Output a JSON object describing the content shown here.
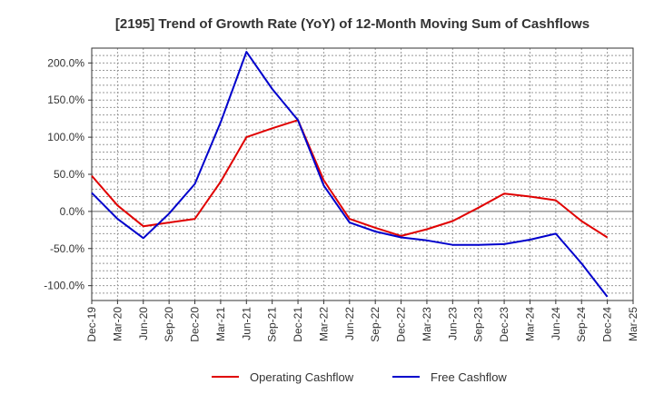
{
  "chart_data": {
    "type": "line",
    "title": "[2195]  Trend of Growth Rate (YoY) of 12-Month Moving Sum of Cashflows",
    "xlabel": "",
    "ylabel": "",
    "ylim": [
      -120,
      220
    ],
    "yticks": [
      200,
      150,
      100,
      50,
      0,
      -50,
      -100
    ],
    "ytick_labels": [
      "200.0%",
      "150.0%",
      "100.0%",
      "50.0%",
      "0.0%",
      "-50.0%",
      "-100.0%"
    ],
    "categories": [
      "Dec-19",
      "Mar-20",
      "Jun-20",
      "Sep-20",
      "Dec-20",
      "Mar-21",
      "Jun-21",
      "Sep-21",
      "Dec-21",
      "Mar-22",
      "Jun-22",
      "Sep-22",
      "Dec-22",
      "Mar-23",
      "Jun-23",
      "Sep-23",
      "Dec-23",
      "Mar-24",
      "Jun-24",
      "Sep-24",
      "Dec-24",
      "Mar-25"
    ],
    "grid": true,
    "legend_position": "bottom",
    "series": [
      {
        "name": "Operating Cashflow",
        "color": "#e00000",
        "values": [
          48,
          8,
          -20,
          -15,
          -10,
          40,
          100,
          112,
          123,
          42,
          -10,
          -22,
          -33,
          -24,
          -13,
          5,
          24,
          20,
          15,
          -13,
          -35,
          null
        ]
      },
      {
        "name": "Free Cashflow",
        "color": "#0000cc",
        "values": [
          25,
          -10,
          -36,
          -3,
          37,
          120,
          215,
          165,
          123,
          35,
          -15,
          -27,
          -35,
          -39,
          -45,
          -45,
          -44,
          -38,
          -30,
          -70,
          -115,
          null
        ]
      }
    ]
  }
}
